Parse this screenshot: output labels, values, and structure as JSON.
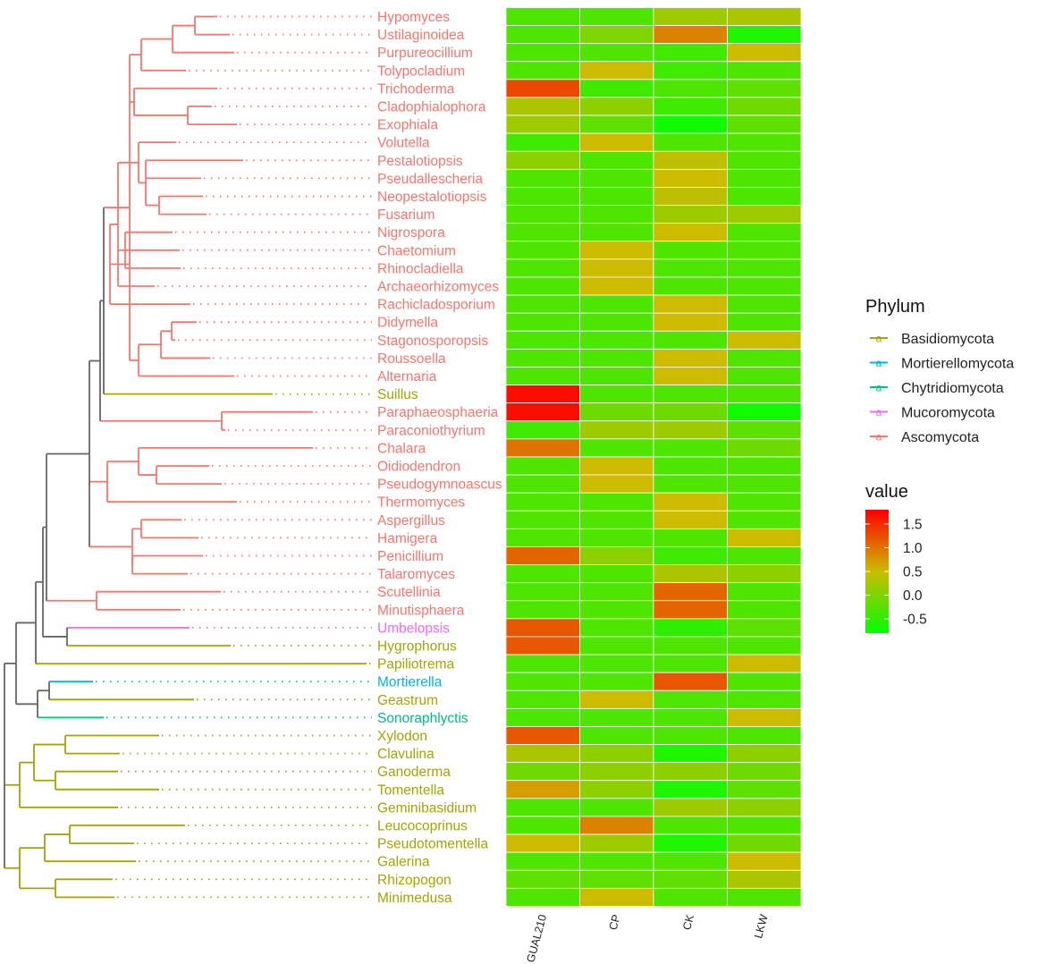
{
  "chart_data": {
    "type": "heatmap",
    "title": "",
    "columns": [
      "GUAL210",
      "CP",
      "CK",
      "LKW"
    ],
    "rows": [
      {
        "taxon": "Hypomyces",
        "phylum": "Ascomycota",
        "values": [
          -0.3,
          -0.3,
          0.2,
          0.3
        ]
      },
      {
        "taxon": "Ustilaginoidea",
        "phylum": "Ascomycota",
        "values": [
          -0.3,
          0.0,
          0.9,
          -0.6
        ]
      },
      {
        "taxon": "Purpureocillium",
        "phylum": "Ascomycota",
        "values": [
          -0.3,
          -0.3,
          -0.4,
          0.5
        ]
      },
      {
        "taxon": "Tolypocladium",
        "phylum": "Ascomycota",
        "values": [
          -0.3,
          0.5,
          -0.4,
          -0.3
        ]
      },
      {
        "taxon": "Trichoderma",
        "phylum": "Ascomycota",
        "values": [
          1.3,
          -0.4,
          -0.3,
          -0.2
        ]
      },
      {
        "taxon": "Cladophialophora",
        "phylum": "Ascomycota",
        "values": [
          0.3,
          0.1,
          -0.4,
          -0.1
        ]
      },
      {
        "taxon": "Exophiala",
        "phylum": "Ascomycota",
        "values": [
          0.2,
          -0.2,
          -0.7,
          -0.2
        ]
      },
      {
        "taxon": "Volutella",
        "phylum": "Ascomycota",
        "values": [
          -0.4,
          0.5,
          -0.3,
          -0.3
        ]
      },
      {
        "taxon": "Pestalotiopsis",
        "phylum": "Ascomycota",
        "values": [
          0.1,
          -0.3,
          0.4,
          -0.3
        ]
      },
      {
        "taxon": "Pseudallescheria",
        "phylum": "Ascomycota",
        "values": [
          -0.3,
          -0.3,
          0.5,
          -0.3
        ]
      },
      {
        "taxon": "Neopestalotiopsis",
        "phylum": "Ascomycota",
        "values": [
          -0.3,
          -0.3,
          0.4,
          -0.3
        ]
      },
      {
        "taxon": "Fusarium",
        "phylum": "Ascomycota",
        "values": [
          -0.3,
          -0.3,
          0.2,
          0.2
        ]
      },
      {
        "taxon": "Nigrospora",
        "phylum": "Ascomycota",
        "values": [
          -0.3,
          -0.3,
          0.5,
          -0.3
        ]
      },
      {
        "taxon": "Chaetomium",
        "phylum": "Ascomycota",
        "values": [
          -0.3,
          0.5,
          -0.3,
          -0.3
        ]
      },
      {
        "taxon": "Rhinocladiella",
        "phylum": "Ascomycota",
        "values": [
          -0.3,
          0.5,
          -0.3,
          -0.3
        ]
      },
      {
        "taxon": "Archaeorhizomyces",
        "phylum": "Ascomycota",
        "values": [
          -0.3,
          0.5,
          -0.3,
          -0.3
        ]
      },
      {
        "taxon": "Rachicladosporium",
        "phylum": "Ascomycota",
        "values": [
          -0.3,
          -0.3,
          0.5,
          -0.3
        ]
      },
      {
        "taxon": "Didymella",
        "phylum": "Ascomycota",
        "values": [
          -0.3,
          -0.3,
          0.5,
          -0.3
        ]
      },
      {
        "taxon": "Stagonosporopsis",
        "phylum": "Ascomycota",
        "values": [
          -0.3,
          -0.3,
          -0.3,
          0.5
        ]
      },
      {
        "taxon": "Roussoella",
        "phylum": "Ascomycota",
        "values": [
          -0.3,
          -0.3,
          0.5,
          -0.3
        ]
      },
      {
        "taxon": "Alternaria",
        "phylum": "Ascomycota",
        "values": [
          -0.3,
          -0.3,
          0.5,
          -0.3
        ]
      },
      {
        "taxon": "Suillus",
        "phylum": "Basidiomycota",
        "values": [
          1.7,
          -0.3,
          -0.3,
          -0.3
        ]
      },
      {
        "taxon": "Paraphaeosphaeria",
        "phylum": "Ascomycota",
        "values": [
          1.7,
          -0.1,
          -0.1,
          -0.7
        ]
      },
      {
        "taxon": "Paraconiothyrium",
        "phylum": "Ascomycota",
        "values": [
          -0.4,
          0.2,
          0.2,
          -0.2
        ]
      },
      {
        "taxon": "Chalara",
        "phylum": "Ascomycota",
        "values": [
          1.0,
          -0.3,
          -0.3,
          -0.1
        ]
      },
      {
        "taxon": "Oidiodendron",
        "phylum": "Ascomycota",
        "values": [
          -0.3,
          0.5,
          -0.3,
          -0.3
        ]
      },
      {
        "taxon": "Pseudogymnoascus",
        "phylum": "Ascomycota",
        "values": [
          -0.3,
          0.5,
          -0.3,
          -0.3
        ]
      },
      {
        "taxon": "Thermomyces",
        "phylum": "Ascomycota",
        "values": [
          -0.3,
          -0.3,
          0.5,
          -0.3
        ]
      },
      {
        "taxon": "Aspergillus",
        "phylum": "Ascomycota",
        "values": [
          -0.3,
          -0.3,
          0.5,
          -0.3
        ]
      },
      {
        "taxon": "Hamigera",
        "phylum": "Ascomycota",
        "values": [
          -0.3,
          -0.3,
          -0.3,
          0.5
        ]
      },
      {
        "taxon": "Penicillium",
        "phylum": "Ascomycota",
        "values": [
          1.1,
          0.1,
          -0.4,
          -0.3
        ]
      },
      {
        "taxon": "Talaromyces",
        "phylum": "Ascomycota",
        "values": [
          -0.3,
          -0.3,
          0.3,
          0.1
        ]
      },
      {
        "taxon": "Scutellinia",
        "phylum": "Ascomycota",
        "values": [
          -0.3,
          -0.3,
          1.1,
          -0.3
        ]
      },
      {
        "taxon": "Minutisphaera",
        "phylum": "Ascomycota",
        "values": [
          -0.3,
          -0.3,
          1.1,
          -0.3
        ]
      },
      {
        "taxon": "Umbelopsis",
        "phylum": "Mucoromycota",
        "values": [
          1.2,
          -0.3,
          -0.5,
          -0.2
        ]
      },
      {
        "taxon": "Hygrophorus",
        "phylum": "Basidiomycota",
        "values": [
          1.2,
          -0.3,
          -0.3,
          -0.3
        ]
      },
      {
        "taxon": "Papiliotrema",
        "phylum": "Basidiomycota",
        "values": [
          -0.3,
          -0.3,
          -0.3,
          0.5
        ]
      },
      {
        "taxon": "Mortierella",
        "phylum": "Mortierellomycota",
        "values": [
          -0.3,
          -0.3,
          1.2,
          -0.3
        ]
      },
      {
        "taxon": "Geastrum",
        "phylum": "Basidiomycota",
        "values": [
          -0.3,
          0.5,
          -0.3,
          -0.3
        ]
      },
      {
        "taxon": "Sonoraphlyctis",
        "phylum": "Chytridiomycota",
        "values": [
          -0.3,
          -0.3,
          -0.3,
          0.5
        ]
      },
      {
        "taxon": "Xylodon",
        "phylum": "Basidiomycota",
        "values": [
          1.2,
          -0.3,
          -0.3,
          -0.3
        ]
      },
      {
        "taxon": "Clavulina",
        "phylum": "Basidiomycota",
        "values": [
          0.3,
          0.1,
          -0.6,
          0.1
        ]
      },
      {
        "taxon": "Ganoderma",
        "phylum": "Basidiomycota",
        "values": [
          -0.1,
          0.1,
          0.1,
          -0.1
        ]
      },
      {
        "taxon": "Tomentella",
        "phylum": "Basidiomycota",
        "values": [
          0.7,
          0.1,
          -0.6,
          -0.2
        ]
      },
      {
        "taxon": "Geminibasidium",
        "phylum": "Basidiomycota",
        "values": [
          -0.3,
          -0.3,
          0.2,
          0.1
        ]
      },
      {
        "taxon": "Leucocoprinus",
        "phylum": "Basidiomycota",
        "values": [
          -0.3,
          0.9,
          -0.3,
          -0.3
        ]
      },
      {
        "taxon": "Pseudotomentella",
        "phylum": "Basidiomycota",
        "values": [
          0.5,
          0.2,
          -0.6,
          -0.1
        ]
      },
      {
        "taxon": "Galerina",
        "phylum": "Basidiomycota",
        "values": [
          -0.3,
          -0.3,
          -0.3,
          0.5
        ]
      },
      {
        "taxon": "Rhizopogon",
        "phylum": "Basidiomycota",
        "values": [
          -0.2,
          -0.2,
          -0.2,
          0.3
        ]
      },
      {
        "taxon": "Minimedusa",
        "phylum": "Basidiomycota",
        "values": [
          -0.3,
          0.5,
          -0.3,
          -0.3
        ]
      }
    ],
    "phylum_legend": {
      "title": "Phylum",
      "glyph": "a",
      "items": [
        {
          "name": "Basidiomycota",
          "color": "#a3a500"
        },
        {
          "name": "Mortierellomycota",
          "color": "#00b0f6"
        },
        {
          "name": "Chytridiomycota",
          "color": "#00bf7d"
        },
        {
          "name": "Mucoromycota",
          "color": "#e76bf3"
        },
        {
          "name": "Ascomycota",
          "color": "#f8766d"
        }
      ]
    },
    "value_legend": {
      "title": "value",
      "ticks": [
        1.5,
        1.0,
        0.5,
        0.0,
        -0.5
      ],
      "tick_labels": [
        "1.5",
        "1.0",
        "0.5",
        "0.0",
        "-0.5"
      ],
      "range": [
        -0.8,
        1.8
      ]
    },
    "color_scale": {
      "low": "#00ff00",
      "mid": "#ccbb00",
      "high": "#ff0000"
    },
    "tree_color": "#666666"
  }
}
